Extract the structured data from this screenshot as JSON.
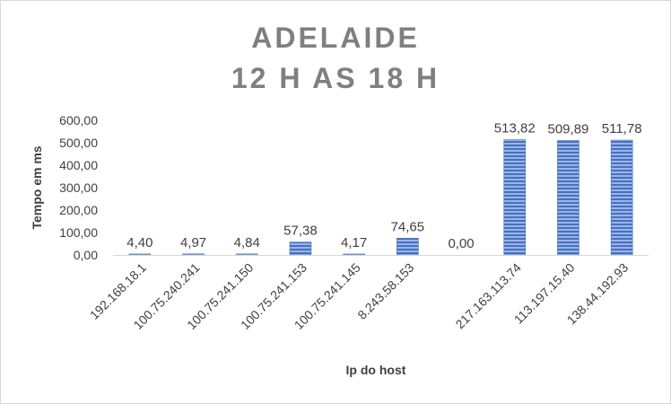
{
  "chart_data": {
    "type": "bar",
    "title": "ADELAIDE",
    "subtitle": "12 H AS 18 H",
    "xlabel": "Ip do host",
    "ylabel": "Tempo em ms",
    "categories": [
      "192.168.18.1",
      "100.75.240.241",
      "100.75.241.150",
      "100.75.241.153",
      "100.75.241.145",
      "8.243.58.153",
      "",
      "217.163.113.74",
      "113.197.15.40",
      "138.44.192.93"
    ],
    "values": [
      4.4,
      4.97,
      4.84,
      57.38,
      4.17,
      74.65,
      0.0,
      513.82,
      509.89,
      511.78
    ],
    "value_labels": [
      "4,40",
      "4,97",
      "4,84",
      "57,38",
      "4,17",
      "74,65",
      "0,00",
      "513,82",
      "509,89",
      "511,78"
    ],
    "ylim": [
      0,
      600
    ],
    "yticks": [
      0,
      100,
      200,
      300,
      400,
      500,
      600
    ],
    "ytick_labels": [
      "0,00",
      "100,00",
      "200,00",
      "300,00",
      "400,00",
      "500,00",
      "600,00"
    ],
    "grid": false,
    "legend": "none",
    "bar_color": "#4472c4"
  }
}
